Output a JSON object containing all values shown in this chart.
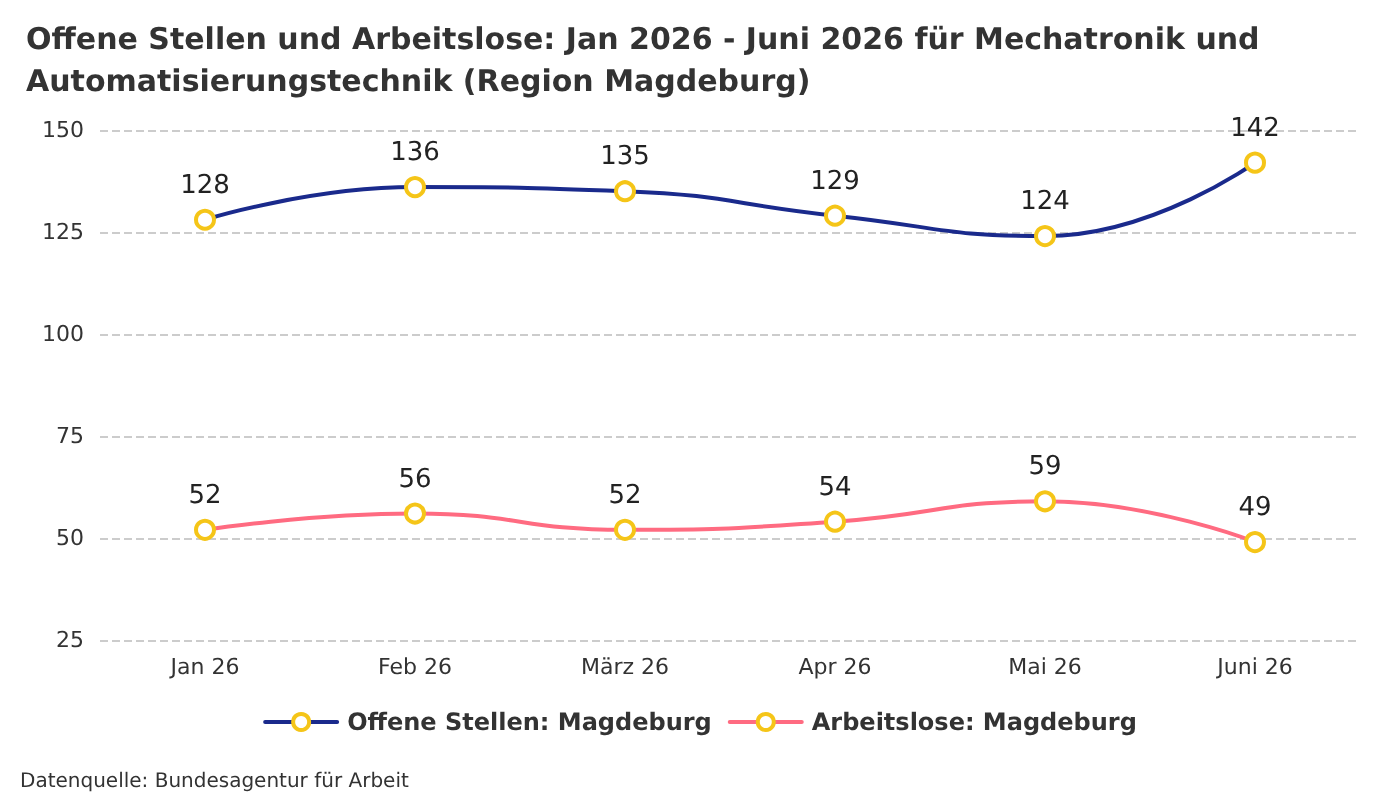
{
  "chart_data": {
    "type": "line",
    "title": "Offene Stellen und Arbeitslose: Jan 2026 - Juni 2026 für Mechatronik und\nAutomatisierungstechnik (Region Magdeburg)",
    "categories": [
      "Jan 26",
      "Feb 26",
      "März 26",
      "Apr 26",
      "Mai 26",
      "Juni 26"
    ],
    "series": [
      {
        "name": "Offene Stellen: Magdeburg",
        "color": "#1a2a8c",
        "values": [
          128,
          136,
          135,
          129,
          124,
          142
        ]
      },
      {
        "name": "Arbeitslose: Magdeburg",
        "color": "#ff6b81",
        "values": [
          52,
          56,
          52,
          54,
          59,
          49
        ]
      }
    ],
    "ylim": [
      25,
      150
    ],
    "yticks": [
      25,
      50,
      75,
      100,
      125,
      150
    ],
    "grid": "y",
    "legend": "bottom",
    "marker": "circle",
    "line_style": "solid",
    "data_labels": true,
    "annotations": [
      "Datenquelle: Bundesagentur für Arbeit"
    ]
  }
}
